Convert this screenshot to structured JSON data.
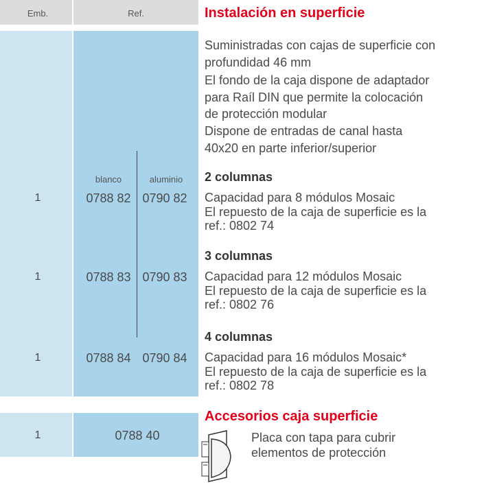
{
  "header": {
    "emb": "Emb.",
    "ref": "Ref."
  },
  "section": {
    "title": "Instalación en superficie",
    "description": [
      "Suministradas con cajas de superficie con",
      "profundidad 46 mm",
      "El fondo de la caja dispone de adaptador",
      "para Raíl DIN que permite la colocación",
      "de protección modular",
      "Dispone de entradas de canal hasta",
      "40x20 en parte inferior/superior"
    ],
    "columns": [
      "blanco",
      "aluminio"
    ],
    "rows": [
      {
        "heading": "2 columnas",
        "emb": "1",
        "ref_blanco": "0788 82",
        "ref_aluminio": "0790 82",
        "lines": [
          "Capacidad para 8 módulos Mosaic",
          "El repuesto de la caja de superficie es la",
          "ref.: 0802 74"
        ]
      },
      {
        "heading": "3 columnas",
        "emb": "1",
        "ref_blanco": "0788 83",
        "ref_aluminio": "0790 83",
        "lines": [
          "Capacidad para 12 módulos Mosaic",
          "El repuesto de la caja de superficie es la",
          "ref.: 0802 76"
        ]
      },
      {
        "heading": "4 columnas",
        "emb": "1",
        "ref_blanco": "0788 84",
        "ref_aluminio": "0790 84",
        "lines": [
          "Capacidad para 16 módulos Mosaic*",
          "El repuesto de la caja de superficie es la",
          "ref.: 0802 78"
        ]
      }
    ]
  },
  "accessories": {
    "title": "Accesorios caja superficie",
    "emb": "1",
    "ref": "0788 40",
    "lines": [
      "Placa con tapa para cubrir",
      "elementos de protección"
    ]
  }
}
